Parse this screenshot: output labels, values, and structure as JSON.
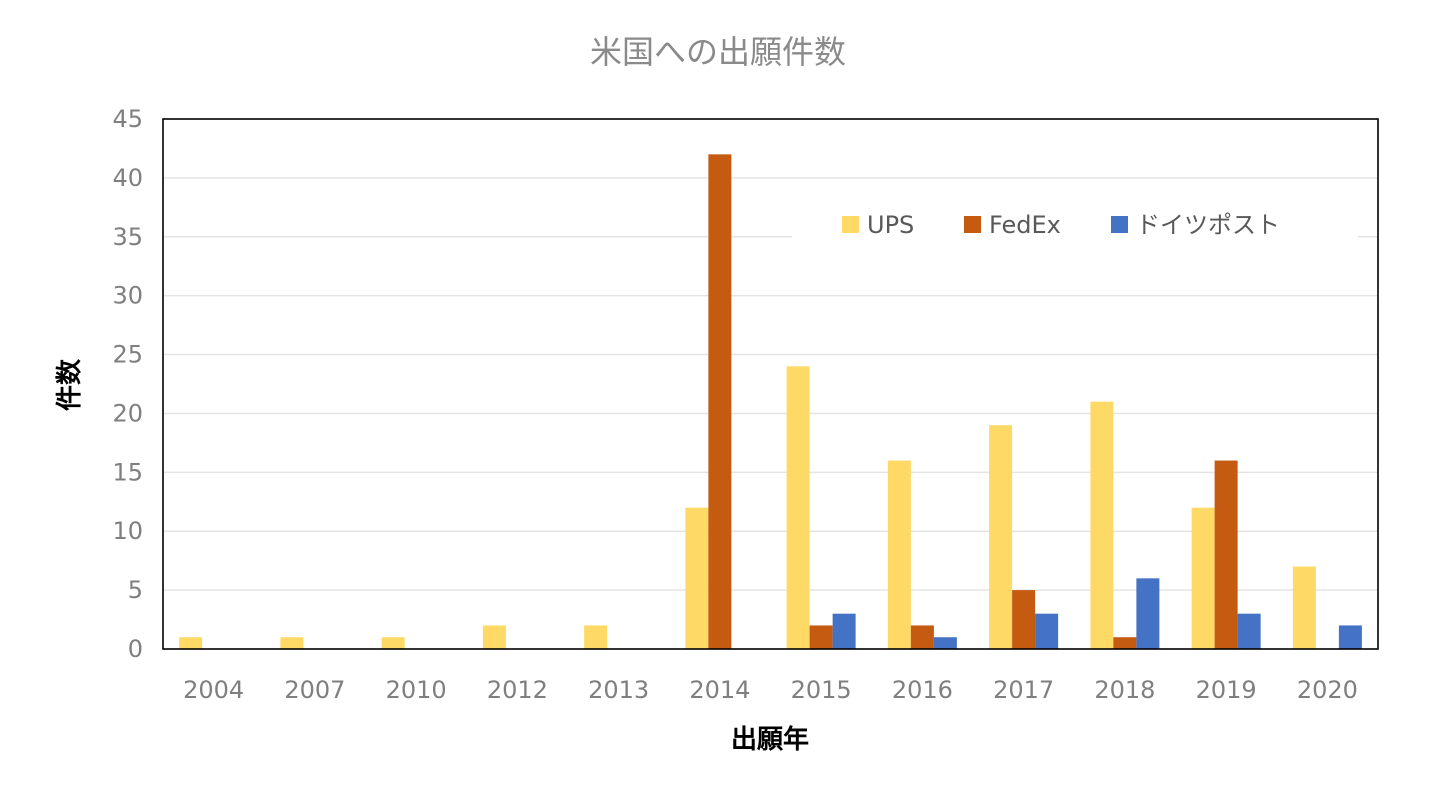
{
  "chart_data": {
    "type": "bar",
    "title": "米国への出願件数",
    "xlabel": "出願年",
    "ylabel": "件数",
    "categories": [
      "2004",
      "2007",
      "2010",
      "2012",
      "2013",
      "2014",
      "2015",
      "2016",
      "2017",
      "2018",
      "2019",
      "2020"
    ],
    "series": [
      {
        "name": "UPS",
        "color": "#FFD966",
        "values": [
          1,
          1,
          1,
          2,
          2,
          12,
          24,
          16,
          19,
          21,
          12,
          7
        ]
      },
      {
        "name": "FedEx",
        "color": "#C55A11",
        "values": [
          0,
          0,
          0,
          0,
          0,
          42,
          2,
          2,
          5,
          1,
          16,
          0
        ]
      },
      {
        "name": "ドイツポスト",
        "color": "#4472C4",
        "values": [
          0,
          0,
          0,
          0,
          0,
          0,
          3,
          1,
          3,
          6,
          3,
          2
        ]
      }
    ],
    "ylim": [
      0,
      45
    ],
    "ytick_step": 5,
    "grid": true,
    "legend_position": "top-right"
  }
}
